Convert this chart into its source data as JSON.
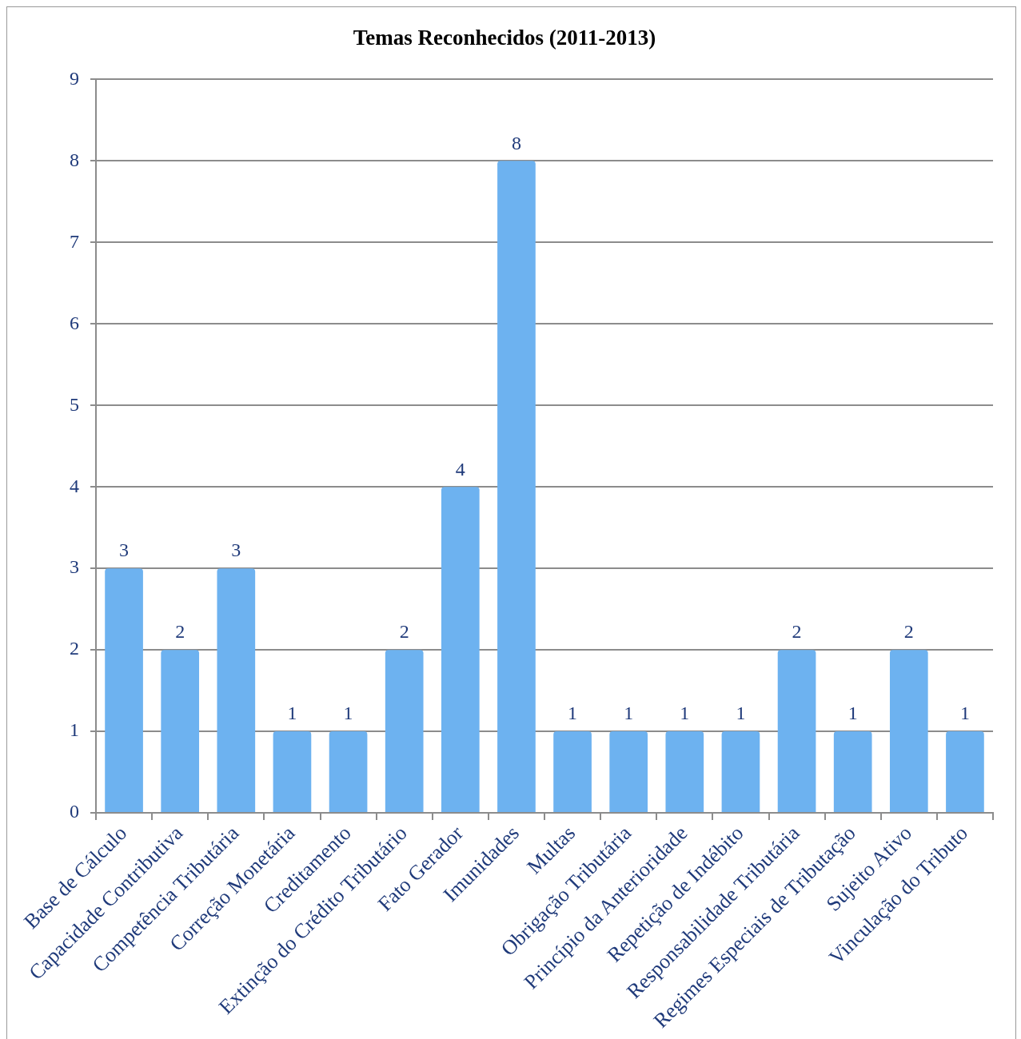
{
  "chart_data": {
    "type": "bar",
    "title": "Temas Reconhecidos (2011-2013)",
    "categories": [
      "Base de Cálculo",
      "Capacidade Contributiva",
      "Competência Tributária",
      "Correção Monetária",
      "Creditamento",
      "Extinção do Crédito Tributário",
      "Fato Gerador",
      "Imunidades",
      "Multas",
      "Obrigação Tributária",
      "Princípio da Anterioridade",
      "Repetição de Indébito",
      "Responsabilidade Tributária",
      "Regimes Especiais de Tributação",
      "Sujeito Ativo",
      "Vinculação do Tributo"
    ],
    "values": [
      3,
      2,
      3,
      1,
      1,
      2,
      4,
      8,
      1,
      1,
      1,
      1,
      2,
      1,
      2,
      1
    ],
    "color": "#6db2f0",
    "ylim": [
      0,
      9
    ],
    "yticks": [
      0,
      1,
      2,
      3,
      4,
      5,
      6,
      7,
      8,
      9
    ],
    "grid": "y",
    "data_labels": true
  }
}
